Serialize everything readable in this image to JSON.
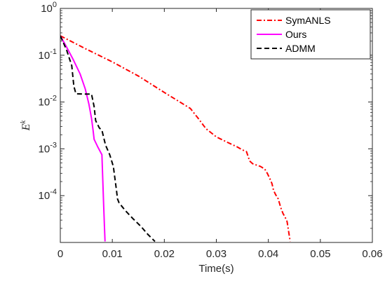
{
  "chart_data": {
    "type": "line",
    "title": "",
    "xlabel": "Time(s)",
    "ylabel": "E",
    "ylabel_sup": "k",
    "xscale": "linear",
    "yscale": "log",
    "xlim": [
      0,
      0.06
    ],
    "ylim": [
      1e-05,
      1
    ],
    "x_ticks": [
      0,
      0.01,
      0.02,
      0.03,
      0.04,
      0.05,
      0.06
    ],
    "x_tick_labels": [
      "0",
      "0.01",
      "0.02",
      "0.03",
      "0.04",
      "0.05",
      "0.06"
    ],
    "y_ticks": [
      {
        "value": 1,
        "base": "10",
        "exp": "0"
      },
      {
        "value": 0.1,
        "base": "10",
        "exp": "-1"
      },
      {
        "value": 0.01,
        "base": "10",
        "exp": "-2"
      },
      {
        "value": 0.001,
        "base": "10",
        "exp": "-3"
      },
      {
        "value": 0.0001,
        "base": "10",
        "exp": "-4"
      }
    ],
    "grid": false,
    "legend_position": "top-right",
    "series": [
      {
        "name": "SymANLS",
        "color": "#ff0000",
        "style": "dash-dot",
        "x": [
          0,
          0.005,
          0.01,
          0.015,
          0.02,
          0.025,
          0.0265,
          0.028,
          0.03,
          0.032,
          0.034,
          0.035,
          0.0358,
          0.0364,
          0.037,
          0.0385,
          0.0393,
          0.0398,
          0.0403,
          0.0407,
          0.041,
          0.0414,
          0.0419,
          0.0424,
          0.0428,
          0.0432,
          0.0436,
          0.0442
        ],
        "y": [
          0.26,
          0.135,
          0.072,
          0.036,
          0.016,
          0.0073,
          0.0045,
          0.0027,
          0.0018,
          0.0014,
          0.0011,
          0.00095,
          0.00087,
          0.00055,
          0.00048,
          0.00042,
          0.00037,
          0.0003,
          0.00023,
          0.00018,
          0.00013,
          0.000105,
          8.5e-05,
          5.5e-05,
          4.2e-05,
          3.5e-05,
          2.8e-05,
          1.05e-05
        ]
      },
      {
        "name": "Ours",
        "color": "#ff00ff",
        "style": "solid",
        "x": [
          0,
          0.0012,
          0.0025,
          0.0038,
          0.0048,
          0.0055,
          0.006,
          0.0063,
          0.0065,
          0.0072,
          0.008,
          0.0083,
          0.0084,
          0.0085,
          0.0086
        ],
        "y": [
          0.26,
          0.15,
          0.08,
          0.04,
          0.019,
          0.009,
          0.0045,
          0.0025,
          0.0016,
          0.0011,
          0.00075,
          8e-05,
          4e-05,
          2e-05,
          1.05e-05
        ]
      },
      {
        "name": "ADMM",
        "color": "#000000",
        "style": "dashed",
        "x": [
          0,
          0.0012,
          0.0022,
          0.0026,
          0.003,
          0.0045,
          0.006,
          0.0065,
          0.0068,
          0.0075,
          0.008,
          0.0087,
          0.0095,
          0.0102,
          0.0108,
          0.011,
          0.0113,
          0.0125,
          0.014,
          0.0155,
          0.0168,
          0.0182
        ],
        "y": [
          0.26,
          0.13,
          0.06,
          0.022,
          0.015,
          0.0148,
          0.0148,
          0.008,
          0.004,
          0.0028,
          0.0025,
          0.0012,
          0.00075,
          0.00042,
          0.00013,
          8.5e-05,
          7e-05,
          4.8e-05,
          3.2e-05,
          2.2e-05,
          1.5e-05,
          1.05e-05
        ]
      }
    ]
  }
}
